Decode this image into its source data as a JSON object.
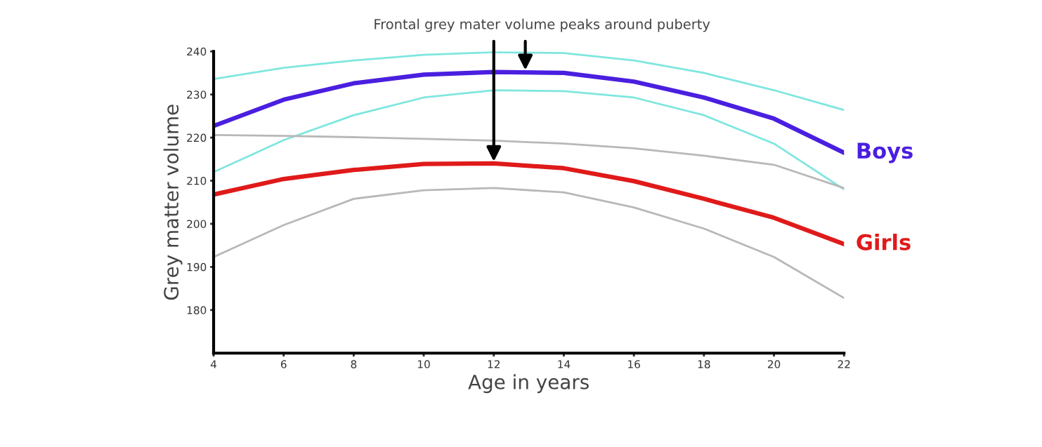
{
  "chart_data": {
    "type": "line",
    "xlabel": "Age in years",
    "ylabel": "Grey matter volume",
    "x": [
      4,
      6,
      8,
      10,
      12,
      14,
      16,
      18,
      20,
      22
    ],
    "series": [
      {
        "color": "#7fe6df",
        "values": [
          233.6,
          236.2,
          237.9,
          239.2,
          239.8,
          239.6,
          237.9,
          235.0,
          231.0,
          226.4
        ]
      },
      {
        "color": "#7fe6df",
        "values": [
          212.0,
          219.4,
          225.2,
          229.3,
          231.0,
          230.8,
          229.3,
          225.2,
          218.6,
          208.0
        ]
      },
      {
        "color": "#b8b8b8",
        "values": [
          220.6,
          220.4,
          220.1,
          219.7,
          219.3,
          218.6,
          217.5,
          215.8,
          213.7,
          208.3
        ]
      },
      {
        "color": "#b8b8b8",
        "values": [
          192.3,
          199.7,
          205.8,
          207.8,
          208.3,
          207.3,
          203.8,
          198.9,
          192.3,
          182.8
        ]
      },
      {
        "name": "Boys",
        "color": "#4a1fe0",
        "values": [
          222.7,
          228.8,
          232.6,
          234.6,
          235.2,
          235.0,
          233.0,
          229.3,
          224.4,
          216.5
        ]
      },
      {
        "name": "Girls",
        "color": "#e01a1a",
        "values": [
          206.8,
          210.4,
          212.5,
          213.9,
          214.0,
          212.9,
          209.9,
          205.8,
          201.4,
          195.3
        ]
      }
    ],
    "xlim": [
      4,
      22
    ],
    "xticks": [
      4,
      6,
      8,
      10,
      12,
      14,
      16,
      18,
      20,
      22
    ],
    "ylim": [
      170,
      240
    ],
    "yticks": [
      180,
      190,
      200,
      210,
      220,
      230,
      240
    ],
    "grid": false,
    "legend": false,
    "marker": "none",
    "line_style": "solid",
    "annotations": [
      {
        "text": "Frontal grey mater volume peaks around puberty",
        "x": 12.9,
        "y": 235.2
      }
    ]
  }
}
